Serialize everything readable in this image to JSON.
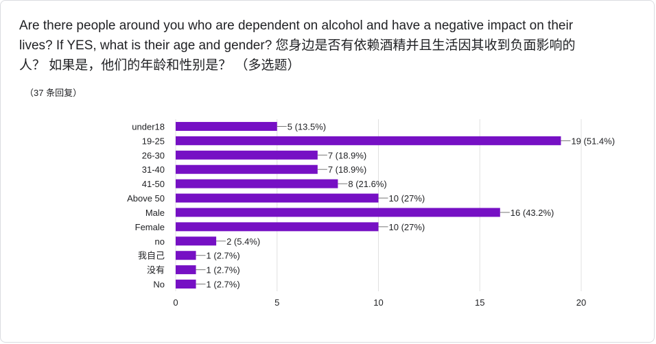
{
  "question": "Are there people around you who are dependent on alcohol and have a negative impact on their lives? If YES, what is their age and gender?  您身边是否有依赖酒精并且生活因其收到负面影响的人？ 如果是，他们的年龄和性别是？ （多选题）",
  "response_count": "（37 条回复）",
  "colors": {
    "bar": "#7610c4",
    "grid": "#e0e0e0",
    "text": "#202124"
  },
  "chart_data": {
    "type": "bar",
    "orientation": "horizontal",
    "categories": [
      "under18",
      "19-25",
      "26-30",
      "31-40",
      "41-50",
      "Above 50",
      "Male",
      "Female",
      "no",
      "我自己",
      "没有",
      "No"
    ],
    "values": [
      5,
      19,
      7,
      7,
      8,
      10,
      16,
      10,
      2,
      1,
      1,
      1
    ],
    "data_labels": [
      "5 (13.5%)",
      "19 (51.4%)",
      "7 (18.9%)",
      "7 (18.9%)",
      "8 (21.6%)",
      "10 (27%)",
      "16 (43.2%)",
      "10 (27%)",
      "2 (5.4%)",
      "1 (2.7%)",
      "1 (2.7%)",
      "1 (2.7%)"
    ],
    "x_ticks": [
      0,
      5,
      10,
      15,
      20
    ],
    "xlim": [
      0,
      20
    ],
    "grid": true
  }
}
